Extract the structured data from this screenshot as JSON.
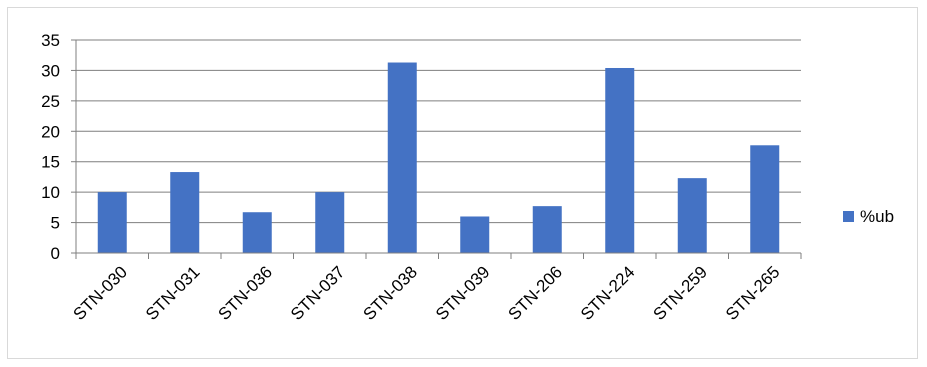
{
  "chart_data": {
    "type": "bar",
    "categories": [
      "STN-030",
      "STN-031",
      "STN-036",
      "STN-037",
      "STN-038",
      "STN-039",
      "STN-206",
      "STN-224",
      "STN-259",
      "STN-265"
    ],
    "series": [
      {
        "name": "%ub",
        "values": [
          10,
          13.3,
          6.7,
          10,
          31.3,
          6,
          7.7,
          30.4,
          12.3,
          17.7
        ],
        "color": "#4472c4"
      }
    ],
    "ylim": [
      0,
      35
    ],
    "yticks": [
      0,
      5,
      10,
      15,
      20,
      25,
      30,
      35
    ],
    "grid": true,
    "legend": "right",
    "title": "",
    "xlabel": "",
    "ylabel": ""
  }
}
